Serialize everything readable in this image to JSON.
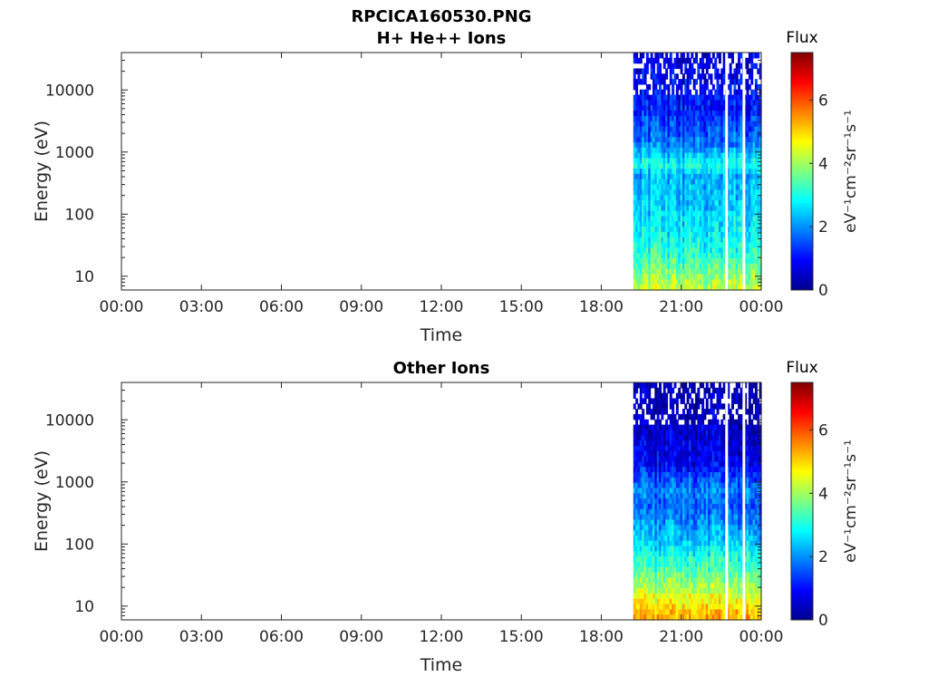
{
  "figure": {
    "title": "RPCICA160530.PNG"
  },
  "chart_data": [
    {
      "type": "heatmap",
      "title": "H+ He++ Ions",
      "xlabel": "Time",
      "ylabel": "Energy (eV)",
      "x_ticks": [
        "00:00",
        "03:00",
        "06:00",
        "09:00",
        "12:00",
        "15:00",
        "18:00",
        "21:00",
        "00:00"
      ],
      "y_ticks": [
        "10",
        "100",
        "1000",
        "10000"
      ],
      "y_scale": "log",
      "ylim": [
        6,
        40000
      ],
      "xlim_hours": [
        0,
        24
      ],
      "data_start_hour": 19.2,
      "data_end_hour": 24,
      "gaps_hours": [
        22.7,
        23.35
      ],
      "colorbar": {
        "title": "Flux",
        "unit": "eV⁻¹cm⁻²sr⁻¹s⁻¹",
        "ticks": [
          "0",
          "2",
          "4",
          "6"
        ],
        "range": [
          0,
          7.5
        ]
      },
      "spectrum_profile": [
        {
          "energy_eV": 7,
          "flux": 4.2
        },
        {
          "energy_eV": 15,
          "flux": 3.4
        },
        {
          "energy_eV": 40,
          "flux": 2.8
        },
        {
          "energy_eV": 150,
          "flux": 2.4
        },
        {
          "energy_eV": 400,
          "flux": 2.2
        },
        {
          "energy_eV": 650,
          "flux": 3.0
        },
        {
          "energy_eV": 1300,
          "flux": 1.8
        },
        {
          "energy_eV": 5000,
          "flux": 1.1
        },
        {
          "energy_eV": 20000,
          "flux": 0.7
        }
      ]
    },
    {
      "type": "heatmap",
      "title": "Other Ions",
      "xlabel": "Time",
      "ylabel": "Energy (eV)",
      "x_ticks": [
        "00:00",
        "03:00",
        "06:00",
        "09:00",
        "12:00",
        "15:00",
        "18:00",
        "21:00",
        "00:00"
      ],
      "y_ticks": [
        "10",
        "100",
        "1000",
        "10000"
      ],
      "y_scale": "log",
      "ylim": [
        6,
        40000
      ],
      "xlim_hours": [
        0,
        24
      ],
      "data_start_hour": 19.2,
      "data_end_hour": 24,
      "gaps_hours": [
        22.7,
        23.35
      ],
      "colorbar": {
        "title": "Flux",
        "unit": "eV⁻¹cm⁻²sr⁻¹s⁻¹",
        "ticks": [
          "0",
          "2",
          "4",
          "6"
        ],
        "range": [
          0,
          7.5
        ]
      },
      "spectrum_profile": [
        {
          "energy_eV": 7,
          "flux": 5.2
        },
        {
          "energy_eV": 15,
          "flux": 4.4
        },
        {
          "energy_eV": 30,
          "flux": 3.6
        },
        {
          "energy_eV": 100,
          "flux": 2.5
        },
        {
          "energy_eV": 400,
          "flux": 1.6
        },
        {
          "energy_eV": 700,
          "flux": 1.9
        },
        {
          "energy_eV": 2000,
          "flux": 0.8
        },
        {
          "energy_eV": 10000,
          "flux": 0.4
        },
        {
          "energy_eV": 30000,
          "flux": 0.3
        }
      ]
    }
  ]
}
